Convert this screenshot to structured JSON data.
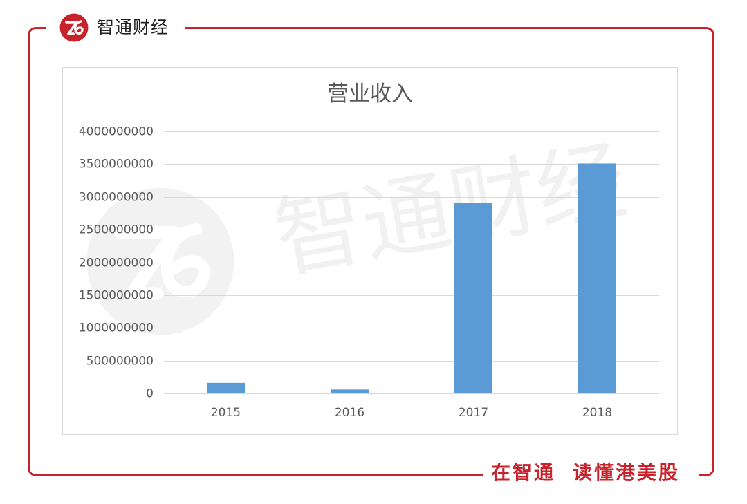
{
  "brand": {
    "name": "智通财经",
    "logo_icon": "zhitong-logo-icon"
  },
  "watermark": {
    "text": "智通财经",
    "logo_icon": "watermark-logo-icon"
  },
  "slogan": {
    "part1": "在智通",
    "part2": "读懂港美股"
  },
  "colors": {
    "brand_red": "#c8232c",
    "bar": "#5b9bd5",
    "grid": "#d9d9d9"
  },
  "chart_data": {
    "type": "bar",
    "title": "营业收入",
    "categories": [
      "2015",
      "2016",
      "2017",
      "2018"
    ],
    "values": [
      160000000,
      60000000,
      2910000000,
      3510000000
    ],
    "ylim": [
      0,
      4000000000
    ],
    "yticks": [
      4000000000,
      3500000000,
      3000000000,
      2500000000,
      2000000000,
      1500000000,
      1000000000,
      500000000,
      0
    ],
    "ytick_labels": [
      "4000000000",
      "3500000000",
      "3000000000",
      "2500000000",
      "2000000000",
      "1500000000",
      "1000000000",
      "500000000",
      "0"
    ],
    "grid": true,
    "legend": "none"
  }
}
